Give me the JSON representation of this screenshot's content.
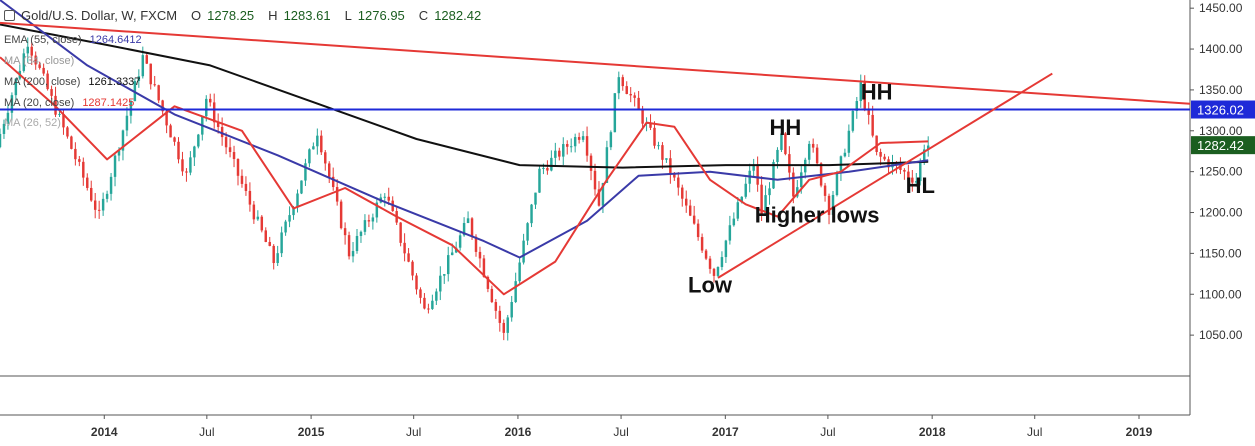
{
  "header": {
    "symbol": "Gold/U.S. Dollar, W, FXCM",
    "ohlc": {
      "o_label": "O",
      "o": "1278.25",
      "h_label": "H",
      "h": "1283.61",
      "l_label": "L",
      "l": "1276.95",
      "c_label": "C",
      "c": "1282.42"
    }
  },
  "indicators": [
    {
      "label": "EMA (55, close)",
      "value": "1264.6412",
      "color": "#3a3aa8"
    },
    {
      "label": "MA (34, close)",
      "value": "",
      "color": "#888888"
    },
    {
      "label": "MA (200, close)",
      "value": "1261.3337",
      "color": "#111111"
    },
    {
      "label": "MA (20, close)",
      "value": "1287.1425",
      "color": "#e53935"
    },
    {
      "label": "MA (26, 52)",
      "value": "",
      "color": "#888888"
    }
  ],
  "colors": {
    "up": "#26a69a",
    "down": "#e53935",
    "ema": "#3a3aa8",
    "ma200": "#111111",
    "ma20": "#e53935",
    "hline": "#1e2ad8",
    "trend": "#e53935",
    "price_tag": "#1b5e20"
  },
  "chart_data": {
    "type": "candlestick",
    "instrument": "Gold/U.S. Dollar",
    "timeframe": "W",
    "ylim": [
      1000,
      1460
    ],
    "xlim": [
      "2013-07-01",
      "2019-04-01"
    ],
    "y_ticks": [
      1050,
      1100,
      1150,
      1200,
      1250,
      1300,
      1350,
      1400,
      1450
    ],
    "y_tick_labels": [
      "1050.00",
      "1100.00",
      "1150.00",
      "1200.00",
      "1250.00",
      "1300.00",
      "1350.00",
      "1400.00",
      "1450.00"
    ],
    "x_ticks": [
      {
        "date": "2014-01-01",
        "label": "2014",
        "bold": true
      },
      {
        "date": "2014-07-01",
        "label": "Jul",
        "bold": false
      },
      {
        "date": "2015-01-01",
        "label": "2015",
        "bold": true
      },
      {
        "date": "2015-07-01",
        "label": "Jul",
        "bold": false
      },
      {
        "date": "2016-01-01",
        "label": "2016",
        "bold": true
      },
      {
        "date": "2016-07-01",
        "label": "Jul",
        "bold": false
      },
      {
        "date": "2017-01-01",
        "label": "2017",
        "bold": true
      },
      {
        "date": "2017-07-01",
        "label": "Jul",
        "bold": false
      },
      {
        "date": "2018-01-01",
        "label": "2018",
        "bold": true
      },
      {
        "date": "2018-07-01",
        "label": "Jul",
        "bold": false
      },
      {
        "date": "2019-01-01",
        "label": "2019",
        "bold": true
      }
    ],
    "price_key_points": [
      [
        "2013-07-01",
        1280
      ],
      [
        "2013-08-26",
        1410
      ],
      [
        "2013-12-30",
        1195
      ],
      [
        "2014-03-17",
        1390
      ],
      [
        "2014-06-02",
        1245
      ],
      [
        "2014-07-07",
        1340
      ],
      [
        "2014-11-03",
        1140
      ],
      [
        "2015-01-19",
        1300
      ],
      [
        "2015-03-16",
        1150
      ],
      [
        "2015-05-18",
        1225
      ],
      [
        "2015-07-27",
        1080
      ],
      [
        "2015-10-12",
        1190
      ],
      [
        "2015-12-14",
        1050
      ],
      [
        "2016-02-15",
        1250
      ],
      [
        "2016-05-02",
        1300
      ],
      [
        "2016-05-30",
        1210
      ],
      [
        "2016-07-04",
        1370
      ],
      [
        "2016-10-03",
        1250
      ],
      [
        "2016-12-19",
        1125
      ],
      [
        "2017-02-27",
        1260
      ],
      [
        "2017-03-13",
        1200
      ],
      [
        "2017-04-17",
        1290
      ],
      [
        "2017-05-08",
        1220
      ],
      [
        "2017-06-05",
        1290
      ],
      [
        "2017-07-10",
        1205
      ],
      [
        "2017-09-04",
        1355
      ],
      [
        "2017-10-02",
        1270
      ],
      [
        "2017-12-11",
        1240
      ],
      [
        "2017-12-25",
        1282.42
      ]
    ],
    "moving_averages": [
      {
        "name": "MA (200, close)",
        "points": [
          [
            "2013-07-01",
            1430
          ],
          [
            "2014-01-06",
            1405
          ],
          [
            "2014-07-07",
            1380
          ],
          [
            "2015-01-05",
            1335
          ],
          [
            "2015-07-06",
            1290
          ],
          [
            "2016-01-04",
            1258
          ],
          [
            "2016-07-04",
            1255
          ],
          [
            "2017-01-02",
            1258
          ],
          [
            "2017-07-03",
            1258
          ],
          [
            "2017-12-25",
            1262
          ]
        ]
      },
      {
        "name": "EMA (55, close)",
        "points": [
          [
            "2013-07-01",
            1460
          ],
          [
            "2013-12-02",
            1380
          ],
          [
            "2014-05-05",
            1320
          ],
          [
            "2014-11-03",
            1270
          ],
          [
            "2015-05-04",
            1215
          ],
          [
            "2015-11-02",
            1165
          ],
          [
            "2016-01-04",
            1145
          ],
          [
            "2016-05-02",
            1190
          ],
          [
            "2016-08-01",
            1245
          ],
          [
            "2016-12-05",
            1250
          ],
          [
            "2017-04-03",
            1240
          ],
          [
            "2017-08-07",
            1250
          ],
          [
            "2017-12-25",
            1264
          ]
        ]
      },
      {
        "name": "MA (20, close)",
        "points": [
          [
            "2013-07-01",
            1390
          ],
          [
            "2013-10-07",
            1330
          ],
          [
            "2014-01-06",
            1265
          ],
          [
            "2014-05-05",
            1330
          ],
          [
            "2014-09-01",
            1300
          ],
          [
            "2014-12-01",
            1205
          ],
          [
            "2015-03-02",
            1230
          ],
          [
            "2015-06-01",
            1195
          ],
          [
            "2015-09-07",
            1160
          ],
          [
            "2015-12-07",
            1100
          ],
          [
            "2016-03-07",
            1140
          ],
          [
            "2016-06-06",
            1240
          ],
          [
            "2016-08-15",
            1310
          ],
          [
            "2016-10-03",
            1305
          ],
          [
            "2016-12-05",
            1240
          ],
          [
            "2017-02-06",
            1210
          ],
          [
            "2017-04-03",
            1195
          ],
          [
            "2017-05-29",
            1240
          ],
          [
            "2017-07-24",
            1250
          ],
          [
            "2017-10-02",
            1285
          ],
          [
            "2017-12-25",
            1287
          ]
        ]
      }
    ],
    "trendlines": [
      {
        "name": "resistance",
        "from": [
          "2013-07-01",
          1432
        ],
        "to": [
          "2019-04-01",
          1333
        ]
      },
      {
        "name": "support",
        "from": [
          "2016-12-19",
          1120
        ],
        "to": [
          "2018-08-01",
          1370
        ]
      }
    ],
    "horizontal_line": {
      "value": 1326.02,
      "label": "1326.02"
    },
    "last_price": {
      "value": 1282.42,
      "label": "1282.42"
    },
    "annotations": [
      {
        "text": "HH",
        "date": "2017-09-25",
        "value": 1338
      },
      {
        "text": "HH",
        "date": "2017-04-17",
        "value": 1295
      },
      {
        "text": "HL",
        "date": "2017-12-11",
        "value": 1224
      },
      {
        "text": "Higher lows",
        "date": "2017-06-12",
        "value": 1188
      },
      {
        "text": "Low",
        "date": "2016-12-05",
        "value": 1102
      }
    ]
  }
}
